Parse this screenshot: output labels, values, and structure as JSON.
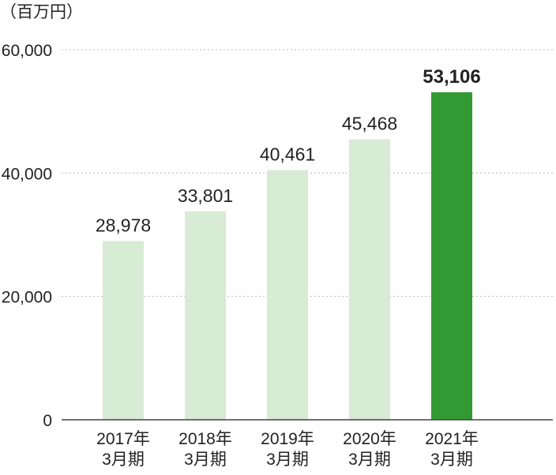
{
  "chart_data": {
    "type": "bar",
    "unit_label": "（百万円）",
    "categories": [
      [
        "2017年",
        "3月期"
      ],
      [
        "2018年",
        "3月期"
      ],
      [
        "2019年",
        "3月期"
      ],
      [
        "2020年",
        "3月期"
      ],
      [
        "2021年",
        "3月期"
      ]
    ],
    "values": [
      28978,
      33801,
      40461,
      45468,
      53106
    ],
    "value_labels": [
      "28,978",
      "33,801",
      "40,461",
      "45,468",
      "53,106"
    ],
    "highlight_index": 4,
    "yticks": [
      0,
      20000,
      40000,
      60000
    ],
    "ytick_labels": [
      "0",
      "20,000",
      "40,000",
      "60,000"
    ],
    "ylim": [
      0,
      60000
    ],
    "grid": true,
    "colors": {
      "bar": "#d8ebd4",
      "highlight": "#339933",
      "grid": "#bbbbbb",
      "axis": "#444444",
      "text": "#222222"
    }
  }
}
